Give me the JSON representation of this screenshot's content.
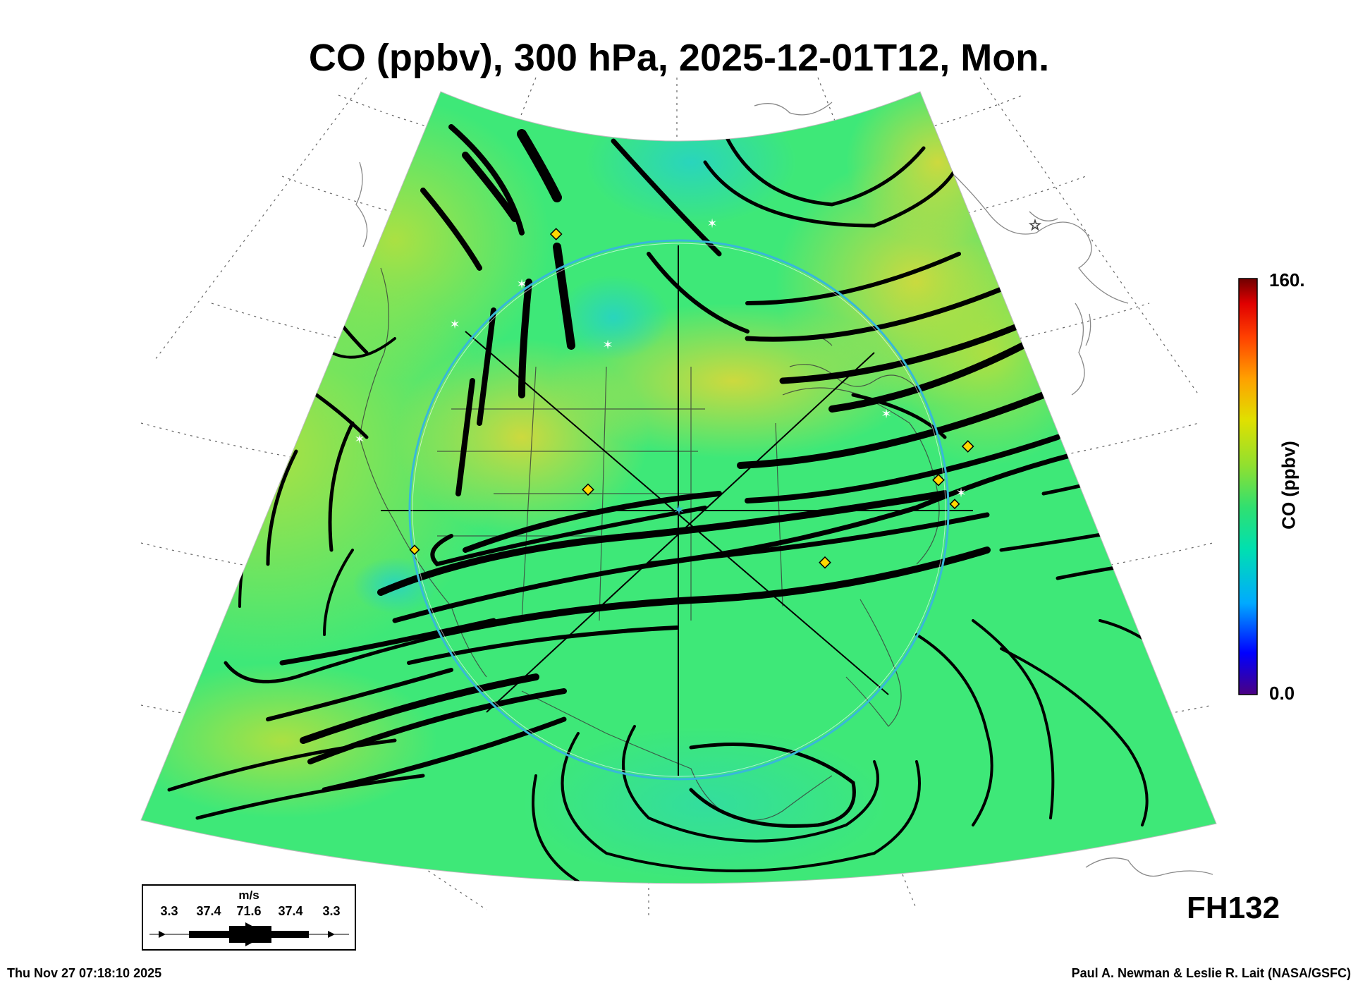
{
  "title": "CO (ppbv), 300 hPa, 2025-12-01T12, Mon.",
  "colorbar": {
    "max_label": "160.",
    "min_label": "0.0",
    "title": "CO (ppbv)",
    "colors": [
      "#4b0082",
      "#0000ff",
      "#00aaff",
      "#00e0b0",
      "#30e070",
      "#90e030",
      "#e0e000",
      "#ffa000",
      "#ff4000",
      "#e00000",
      "#700000"
    ]
  },
  "wind_legend": {
    "unit": "m/s",
    "values": [
      "3.3",
      "37.4",
      "71.6",
      "37.4",
      "3.3"
    ]
  },
  "forecast_label": "FH132",
  "timestamp": "Thu Nov 27 07:18:10 2025",
  "credit": "Paul A. Newman & Leslie R. Lait (NASA/GSFC)",
  "map_colors": {
    "base_field": "#3ee878",
    "high_co": "#a8e040",
    "very_high_co": "#d8d838",
    "low_co": "#2ad8b0",
    "streamline": "#000000",
    "target_ring": "#38b8d8",
    "station_marker": "#ffd800"
  }
}
